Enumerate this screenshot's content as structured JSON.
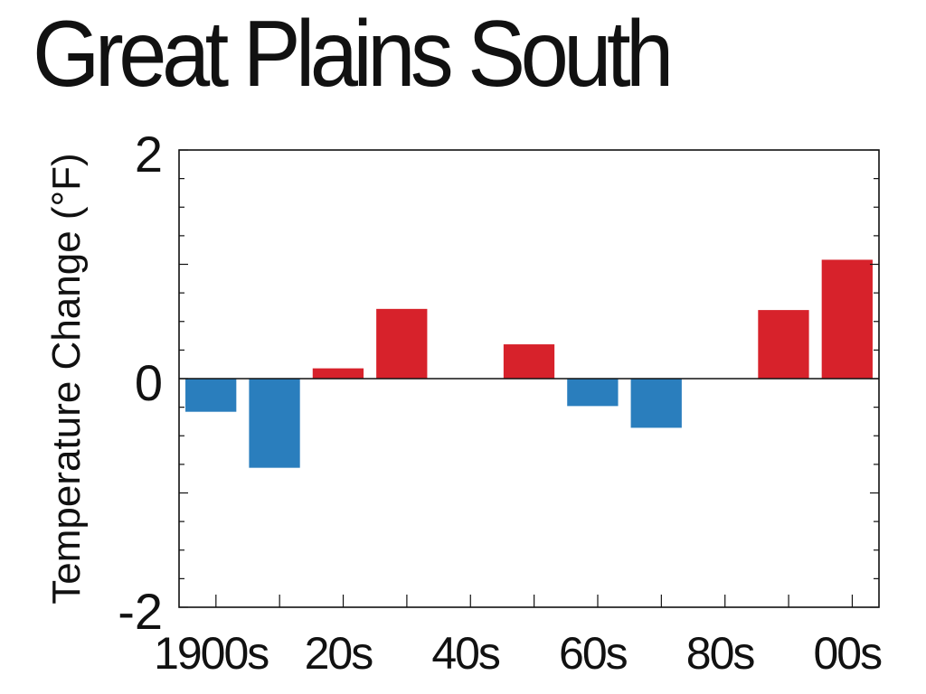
{
  "chart_data": {
    "type": "bar",
    "title": "Great Plains South",
    "ylabel": "Temperature Change (°F)",
    "xlabel": "",
    "ylim": [
      -2,
      2
    ],
    "y_tick_labels": [
      "2",
      "0",
      "-2"
    ],
    "y_tick_values": [
      2,
      0,
      -2
    ],
    "x_tick_labels": [
      "1900s",
      "20s",
      "40s",
      "60s",
      "80s",
      "00s"
    ],
    "categories": [
      "1900s",
      "1910s",
      "1920s",
      "1930s",
      "1940s",
      "1950s",
      "1960s",
      "1970s",
      "1980s",
      "1990s",
      "2000s"
    ],
    "values": [
      -0.29,
      -0.78,
      0.09,
      0.61,
      0.0,
      0.3,
      -0.24,
      -0.43,
      0.0,
      0.6,
      1.04
    ],
    "grid": false,
    "colors": {
      "positive": "#d7222b",
      "negative": "#2a7ebd",
      "axis": "#111111"
    }
  }
}
